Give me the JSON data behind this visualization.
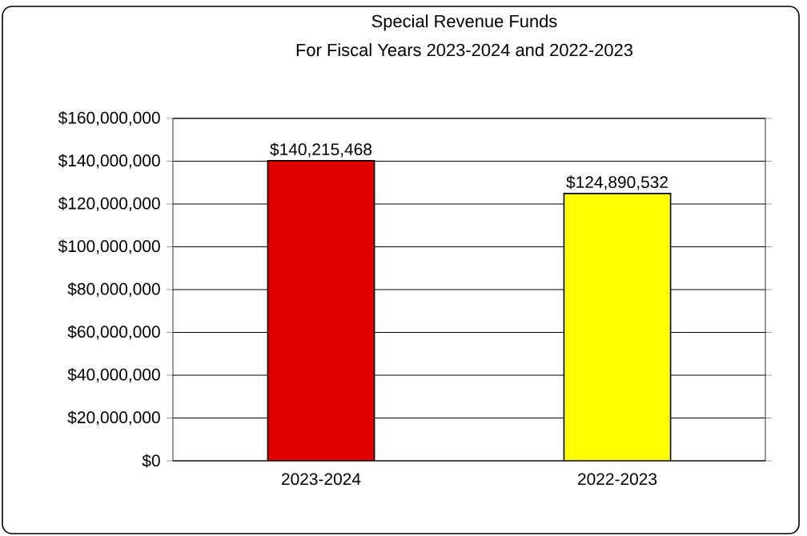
{
  "chart_data": {
    "type": "bar",
    "title": "Special Revenue Funds",
    "subtitle": "For Fiscal Years 2023-2024 and 2022-2023",
    "categories": [
      "2023-2024",
      "2022-2023"
    ],
    "values": [
      140215468,
      124890532
    ],
    "colors": [
      "#e00000",
      "#ffff00"
    ],
    "value_labels": [
      "$140,215,468",
      "$124,890,532"
    ],
    "ylim": [
      0,
      160000000
    ],
    "yticks": [
      {
        "value": 0,
        "label": "$0"
      },
      {
        "value": 20000000,
        "label": "$20,000,000"
      },
      {
        "value": 40000000,
        "label": "$40,000,000"
      },
      {
        "value": 60000000,
        "label": "$60,000,000"
      },
      {
        "value": 80000000,
        "label": "$80,000,000"
      },
      {
        "value": 100000000,
        "label": "$100,000,000"
      },
      {
        "value": 120000000,
        "label": "$120,000,000"
      },
      {
        "value": 140000000,
        "label": "$140,000,000"
      },
      {
        "value": 160000000,
        "label": "$160,000,000"
      }
    ],
    "grid": "y"
  }
}
